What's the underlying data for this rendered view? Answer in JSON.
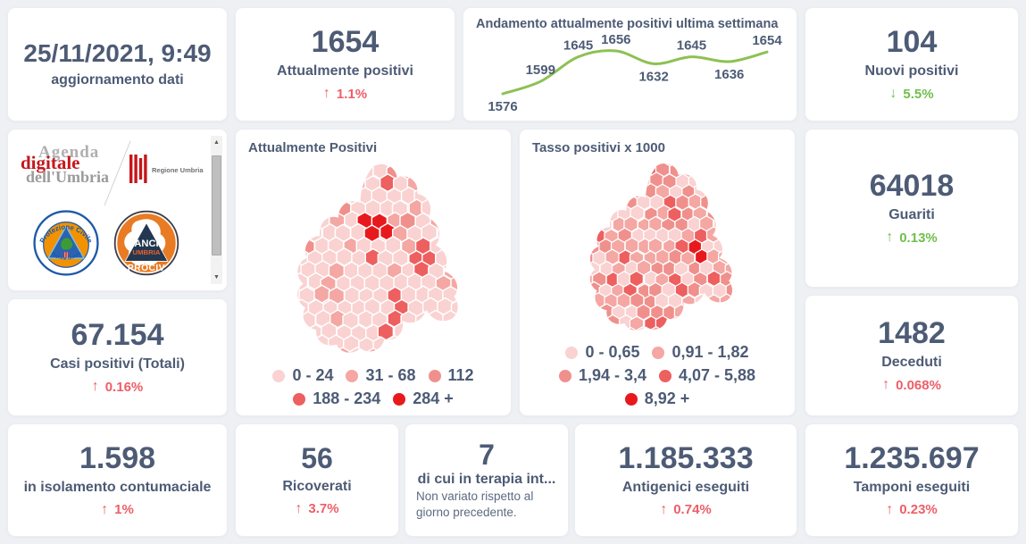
{
  "colors": {
    "text": "#4d5b75",
    "muted": "#5d6a80",
    "red": "#ed5e68",
    "green": "#6fbf4b",
    "line_green": "#8dc152",
    "page_bg": "#eef0f4",
    "card_bg": "#ffffff"
  },
  "header": {
    "update_value": "25/11/2021, 9:49",
    "update_label": "aggiornamento dati"
  },
  "stats": {
    "attualmente_positivi": {
      "value": "1654",
      "label": "Attualmente positivi",
      "delta": "1.1%",
      "direction": "up",
      "trend": "bad"
    },
    "nuovi_positivi": {
      "value": "104",
      "label": "Nuovi positivi",
      "delta": "5.5%",
      "direction": "down",
      "trend": "good"
    },
    "guariti": {
      "value": "64018",
      "label": "Guariti",
      "delta": "0.13%",
      "direction": "up",
      "trend": "good"
    },
    "casi_totali": {
      "value": "67.154",
      "label": "Casi positivi (Totali)",
      "delta": "0.16%",
      "direction": "up",
      "trend": "bad"
    },
    "deceduti": {
      "value": "1482",
      "label": "Deceduti",
      "delta": "0.068%",
      "direction": "up",
      "trend": "bad"
    },
    "isolamento": {
      "value": "1.598",
      "label": "in isolamento contumaciale",
      "delta": "1%",
      "direction": "up",
      "trend": "bad"
    },
    "ricoverati": {
      "value": "56",
      "label": "Ricoverati",
      "delta": "3.7%",
      "direction": "up",
      "trend": "bad"
    },
    "terapia_intensiva": {
      "value": "7",
      "label": "di cui in terapia int...",
      "note": "Non variato rispetto al giorno precedente."
    },
    "antigenici": {
      "value": "1.185.333",
      "label": "Antigenici eseguiti",
      "delta": "0.74%",
      "direction": "up",
      "trend": "bad"
    },
    "tamponi": {
      "value": "1.235.697",
      "label": "Tamponi eseguiti",
      "delta": "0.23%",
      "direction": "up",
      "trend": "bad"
    }
  },
  "chart_data": {
    "type": "line",
    "title": "Andamento attualmente positivi ultima settimana",
    "values": [
      1576,
      1599,
      1645,
      1656,
      1632,
      1645,
      1636,
      1654
    ],
    "label_positions": [
      "below",
      "above",
      "above",
      "above",
      "below",
      "above",
      "below",
      "above"
    ],
    "line_color": "#8dc152",
    "data_labels": true,
    "axes": "hidden",
    "grid": false,
    "legend_position": "none"
  },
  "maps": [
    {
      "title": "Attualmente Positivi",
      "legend": [
        {
          "label": "0 - 24",
          "color": "#f9d2d1"
        },
        {
          "label": "31 - 68",
          "color": "#f4a7a3"
        },
        {
          "label": "112",
          "color": "#f0908c"
        },
        {
          "label": "188 - 234",
          "color": "#ee5f5f"
        },
        {
          "label": "284 +",
          "color": "#e8191d"
        }
      ]
    },
    {
      "title": "Tasso positivi x 1000",
      "legend": [
        {
          "label": "0 - 0,65",
          "color": "#f9d2d1"
        },
        {
          "label": "0,91 - 1,82",
          "color": "#f4a7a3"
        },
        {
          "label": "1,94 - 3,4",
          "color": "#f0908c"
        },
        {
          "label": "4,07 - 5,88",
          "color": "#ee5f5f"
        },
        {
          "label": "8,92 +",
          "color": "#e8191d"
        }
      ]
    }
  ],
  "logos": {
    "agenda": {
      "line1": "Agenda",
      "line2": "digitale",
      "line3": "dell'Umbria"
    },
    "regione": {
      "label": "Regione Umbria"
    },
    "protezione_civile": {
      "arc_top": "Protezione Civile",
      "arc_bottom": "Regione Umbria"
    },
    "anci": {
      "line1": "ANCI",
      "line2": "UMBRIA",
      "line3": "PROCIV"
    }
  }
}
